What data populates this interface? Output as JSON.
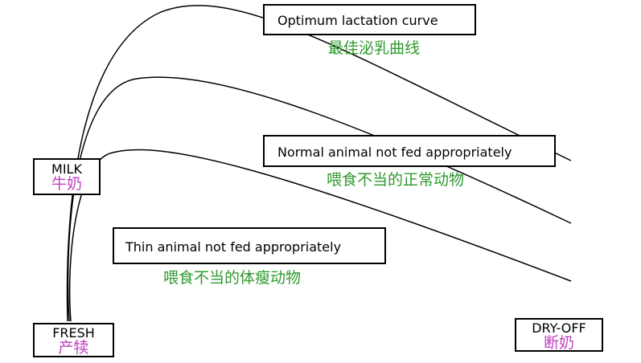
{
  "colors": {
    "chinese_curve_label": "#2e9a2e",
    "chinese_stage_label": "#c040c0",
    "line": "#000000"
  },
  "curves": [
    {
      "en": "Optimum lactation curve",
      "zh": "最佳泌乳曲线"
    },
    {
      "en": "Normal animal not fed appropriately",
      "zh": "喂食不当的正常动物"
    },
    {
      "en": "Thin animal not fed appropriately",
      "zh": "喂食不当的体瘦动物"
    }
  ],
  "stages": {
    "milk": {
      "en": "MILK",
      "zh": "牛奶"
    },
    "fresh": {
      "en": "FRESH",
      "zh": "产犊"
    },
    "dryoff": {
      "en": "DRY-OFF",
      "zh": "断奶"
    }
  }
}
